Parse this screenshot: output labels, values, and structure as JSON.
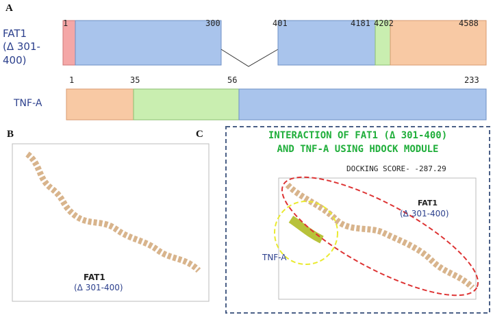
{
  "panel_a": {
    "label": "A",
    "proteins": [
      {
        "name": "FAT1",
        "deletion": "(Δ 301-400)",
        "positions": [
          "1",
          "300",
          "401",
          "4181",
          "4202",
          "4588"
        ]
      },
      {
        "name": "TNF-A",
        "positions": [
          "1",
          "35",
          "56",
          "233"
        ]
      }
    ]
  },
  "panel_b": {
    "label": "B",
    "caption_name": "FAT1",
    "caption_deletion": "(Δ 301-400)"
  },
  "panel_c": {
    "label": "C",
    "title_lines": [
      "INTERACTION OF FAT1 (Δ 301-400)",
      "AND TNF-A USING HDOCK MODULE"
    ],
    "docking_score": "DOCKING SCORE- -287.29",
    "fat1_name": "FAT1",
    "fat1_deletion": "(Δ 301-400)",
    "tnf_label": "TNF-A"
  }
}
